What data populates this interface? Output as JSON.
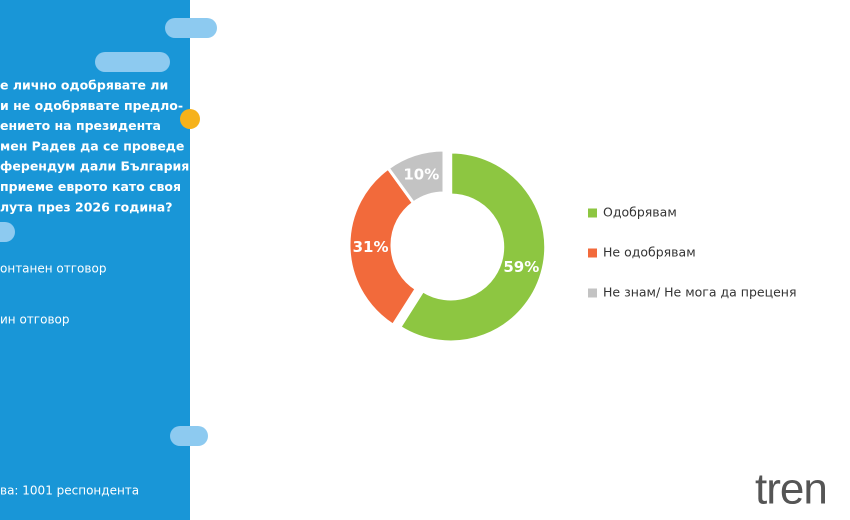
{
  "panel": {
    "question_lines": [
      "е лично одобрявате ли",
      "и не одобрявате предло-",
      "ението на президента",
      "мен Радев да се проведе",
      "ферендум дали България",
      "приеме еврото като своя",
      "лута през 2026 година?"
    ],
    "notes": [
      "онтанен отговор",
      "ин отговор"
    ],
    "sample": "ва:  1001 респондента"
  },
  "logo": "tren",
  "chart_data": {
    "type": "donut",
    "categories": [
      "Одобрявам",
      "Не одобрявам",
      "Не знам/ Не мога да преценя"
    ],
    "values": [
      59,
      31,
      10
    ],
    "value_labels": [
      "59%",
      "31%",
      "10%"
    ],
    "colors": [
      "#8dc641",
      "#f26a3b",
      "#c3c3c3"
    ],
    "legend": "right"
  }
}
